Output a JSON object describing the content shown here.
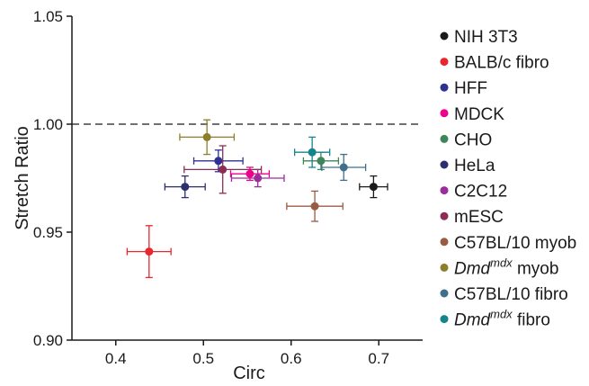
{
  "chart_data": {
    "type": "scatter",
    "xlabel": "Circ",
    "ylabel": "Stretch Ratio",
    "xlim": [
      0.35,
      0.75
    ],
    "ylim": [
      0.9,
      1.05
    ],
    "x_ticks": [
      "0.4",
      "0.5",
      "0.6",
      "0.7"
    ],
    "y_ticks": [
      "0.90",
      "0.95",
      "1.00",
      "1.05"
    ],
    "reference_line": {
      "y": 1.0,
      "style": "dashed"
    },
    "legend_position": "right",
    "series": [
      {
        "name": "NIH 3T3",
        "color": "#1a1a1a",
        "x": 0.694,
        "y": 0.971,
        "xerr": 0.016,
        "yerr": 0.005
      },
      {
        "name": "BALB/c fibro",
        "color": "#e8262d",
        "x": 0.438,
        "y": 0.941,
        "xerr": 0.025,
        "yerr": 0.012
      },
      {
        "name": "HFF",
        "color": "#2e3192",
        "x": 0.517,
        "y": 0.983,
        "xerr": 0.028,
        "yerr": 0.005
      },
      {
        "name": "MDCK",
        "color": "#ec008c",
        "x": 0.553,
        "y": 0.977,
        "xerr": 0.022,
        "yerr": 0.003
      },
      {
        "name": "CHO",
        "color": "#3c8659",
        "x": 0.634,
        "y": 0.983,
        "xerr": 0.02,
        "yerr": 0.004
      },
      {
        "name": "HeLa",
        "color": "#2b2f6b",
        "x": 0.479,
        "y": 0.971,
        "xerr": 0.023,
        "yerr": 0.005
      },
      {
        "name": "C2C12",
        "color": "#9b2d9b",
        "x": 0.562,
        "y": 0.975,
        "xerr": 0.03,
        "yerr": 0.004
      },
      {
        "name": "mESC",
        "color": "#8b2d55",
        "x": 0.522,
        "y": 0.979,
        "xerr": 0.044,
        "yerr": 0.011
      },
      {
        "name": "C57BL/10 myob",
        "color": "#9a5b43",
        "x": 0.627,
        "y": 0.962,
        "xerr": 0.032,
        "yerr": 0.007
      },
      {
        "name": "Dmd^mdx myob",
        "color": "#8d7f2a",
        "x": 0.504,
        "y": 0.994,
        "xerr": 0.031,
        "yerr": 0.008
      },
      {
        "name": "C57BL/10 fibro",
        "color": "#3f6f8c",
        "x": 0.66,
        "y": 0.98,
        "xerr": 0.025,
        "yerr": 0.006
      },
      {
        "name": "Dmd^mdx fibro",
        "color": "#14858d",
        "x": 0.624,
        "y": 0.987,
        "xerr": 0.02,
        "yerr": 0.007
      }
    ],
    "legend": [
      {
        "label": "NIH 3T3",
        "color": "#1a1a1a"
      },
      {
        "label": "BALB/c fibro",
        "color": "#e8262d"
      },
      {
        "label": "HFF",
        "color": "#2e3192"
      },
      {
        "label": "MDCK",
        "color": "#ec008c"
      },
      {
        "label": "CHO",
        "color": "#3c8659"
      },
      {
        "label": "HeLa",
        "color": "#2b2f6b"
      },
      {
        "label": "C2C12",
        "color": "#9b2d9b"
      },
      {
        "label": "mESC",
        "color": "#8b2d55"
      },
      {
        "label": "C57BL/10 myob",
        "color": "#9a5b43"
      },
      {
        "label_main": "Dmd",
        "label_sup": "mdx",
        "label_rest": " myob",
        "color": "#8d7f2a"
      },
      {
        "label": "C57BL/10 fibro",
        "color": "#3f6f8c"
      },
      {
        "label_main": "Dmd",
        "label_sup": "mdx",
        "label_rest": " fibro",
        "color": "#14858d"
      }
    ]
  }
}
